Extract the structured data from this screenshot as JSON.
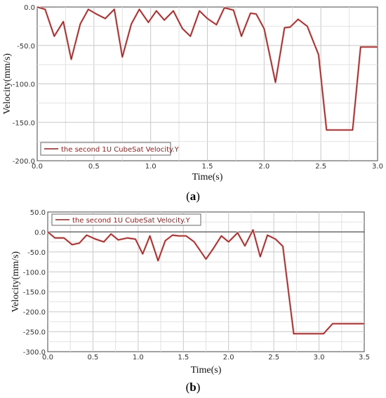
{
  "chart_data": [
    {
      "type": "line",
      "caption": "(a)",
      "xlabel": "Time(s)",
      "ylabel": "Velocity(mm/s)",
      "xlim": [
        0,
        3.0
      ],
      "ylim": [
        -200,
        0
      ],
      "xticks": [
        "0.0",
        "0.5",
        "1.0",
        "1.5",
        "2.0",
        "2.5",
        "3.0"
      ],
      "yticks": [
        "0.0",
        "-50.0",
        "-100.0",
        "-150.0",
        "-200.0"
      ],
      "grid": true,
      "legend_position": "bottom-left",
      "color": "#8b1e1e",
      "series": [
        {
          "name": "the second 1U CubeSat Velocity.Y",
          "x": [
            0,
            0.07,
            0.15,
            0.23,
            0.3,
            0.38,
            0.45,
            0.52,
            0.6,
            0.68,
            0.75,
            0.83,
            0.9,
            0.98,
            1.05,
            1.12,
            1.2,
            1.28,
            1.35,
            1.43,
            1.5,
            1.58,
            1.65,
            1.73,
            1.8,
            1.88,
            1.93,
            2.0,
            2.1,
            2.18,
            2.23,
            2.3,
            2.38,
            2.48,
            2.55,
            2.78,
            2.85,
            3.0
          ],
          "y": [
            0,
            -3,
            -38,
            -19,
            -68,
            -22,
            -3,
            -9,
            -15,
            -3,
            -65,
            -22,
            -3,
            -20,
            -5,
            -17,
            -5,
            -28,
            -38,
            -5,
            -15,
            -23,
            -1,
            -4,
            -38,
            -8,
            -9,
            -28,
            -98,
            -27,
            -26,
            -16,
            -25,
            -62,
            -160,
            -160,
            -52,
            -52
          ]
        }
      ]
    },
    {
      "type": "line",
      "caption": "(b)",
      "xlabel": "Time(s)",
      "ylabel": "Velocity(mm/s)",
      "xlim": [
        0,
        3.5
      ],
      "ylim": [
        -300,
        50
      ],
      "xticks": [
        "0.0",
        "0.5",
        "1.0",
        "1.5",
        "2.0",
        "2.5",
        "3.0",
        "3.5"
      ],
      "yticks": [
        "50.0",
        "0.0",
        "-50.0",
        "-100.0",
        "-150.0",
        "-200.0",
        "-250.0",
        "-300.0"
      ],
      "grid": true,
      "legend_position": "top-left",
      "color": "#8b1e1e",
      "series": [
        {
          "name": "the second 1U CubeSat Velocity.Y",
          "x": [
            0,
            0.08,
            0.18,
            0.27,
            0.35,
            0.43,
            0.53,
            0.62,
            0.7,
            0.78,
            0.88,
            0.97,
            1.05,
            1.13,
            1.22,
            1.3,
            1.38,
            1.45,
            1.53,
            1.62,
            1.75,
            1.83,
            1.92,
            2.0,
            2.1,
            2.18,
            2.27,
            2.35,
            2.43,
            2.52,
            2.6,
            2.72,
            3.05,
            3.15,
            3.5
          ],
          "y": [
            0,
            -15,
            -15,
            -32,
            -28,
            -8,
            -18,
            -25,
            -5,
            -20,
            -15,
            -18,
            -55,
            -10,
            -72,
            -22,
            -8,
            -10,
            -10,
            -25,
            -68,
            -42,
            -10,
            -25,
            -2,
            -35,
            5,
            -62,
            -8,
            -18,
            -36,
            -255,
            -255,
            -230,
            -230
          ]
        }
      ]
    }
  ]
}
